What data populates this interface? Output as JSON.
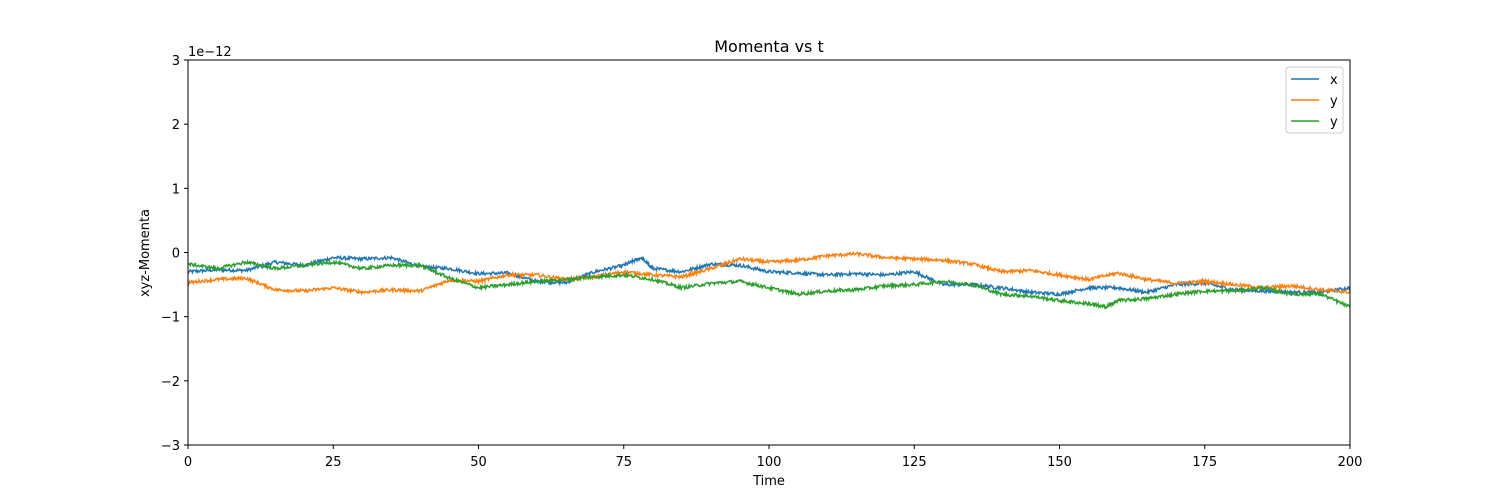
{
  "chart_data": {
    "type": "line",
    "title": "Momenta vs t",
    "xlabel": "Time",
    "ylabel": "xyz-Momenta",
    "y_offset_text": "1e−12",
    "xlim": [
      0,
      200
    ],
    "ylim": [
      -3,
      3
    ],
    "xticks": [
      0,
      25,
      50,
      75,
      100,
      125,
      150,
      175,
      200
    ],
    "yticks": [
      -3,
      -2,
      -1,
      0,
      1,
      2,
      3
    ],
    "ytick_labels": [
      "−3",
      "−2",
      "−1",
      "0",
      "1",
      "2",
      "3"
    ],
    "grid": false,
    "legend_position": "top-right",
    "series": [
      {
        "name": "x",
        "color": "#1f77b4",
        "x": [
          0,
          5,
          10,
          15,
          20,
          25,
          30,
          35,
          40,
          45,
          50,
          55,
          60,
          65,
          70,
          75,
          78,
          80,
          85,
          90,
          95,
          100,
          105,
          110,
          115,
          120,
          125,
          130,
          135,
          140,
          145,
          150,
          155,
          160,
          165,
          170,
          175,
          180,
          185,
          190,
          195,
          200
        ],
        "values": [
          -0.3,
          -0.27,
          -0.28,
          -0.15,
          -0.2,
          -0.08,
          -0.1,
          -0.08,
          -0.22,
          -0.25,
          -0.33,
          -0.32,
          -0.45,
          -0.47,
          -0.3,
          -0.2,
          -0.08,
          -0.25,
          -0.3,
          -0.18,
          -0.2,
          -0.3,
          -0.32,
          -0.35,
          -0.33,
          -0.35,
          -0.3,
          -0.5,
          -0.5,
          -0.55,
          -0.62,
          -0.65,
          -0.55,
          -0.55,
          -0.62,
          -0.5,
          -0.48,
          -0.58,
          -0.6,
          -0.62,
          -0.62,
          -0.55
        ]
      },
      {
        "name": "y",
        "color": "#ff7f0e",
        "x": [
          0,
          5,
          10,
          15,
          20,
          25,
          30,
          35,
          40,
          45,
          50,
          55,
          60,
          65,
          70,
          75,
          80,
          85,
          90,
          95,
          100,
          105,
          110,
          115,
          120,
          125,
          130,
          135,
          140,
          145,
          150,
          155,
          160,
          165,
          170,
          175,
          180,
          185,
          190,
          195,
          200
        ],
        "values": [
          -0.47,
          -0.42,
          -0.4,
          -0.58,
          -0.6,
          -0.55,
          -0.62,
          -0.58,
          -0.6,
          -0.43,
          -0.45,
          -0.35,
          -0.35,
          -0.42,
          -0.38,
          -0.3,
          -0.35,
          -0.38,
          -0.25,
          -0.1,
          -0.15,
          -0.12,
          -0.05,
          -0.02,
          -0.08,
          -0.1,
          -0.12,
          -0.18,
          -0.3,
          -0.28,
          -0.35,
          -0.42,
          -0.32,
          -0.42,
          -0.48,
          -0.45,
          -0.5,
          -0.55,
          -0.52,
          -0.58,
          -0.62
        ]
      },
      {
        "name": "y",
        "color": "#2ca02c",
        "x": [
          0,
          5,
          10,
          15,
          20,
          25,
          30,
          35,
          40,
          45,
          50,
          55,
          60,
          65,
          70,
          75,
          80,
          85,
          90,
          95,
          100,
          105,
          110,
          115,
          120,
          125,
          130,
          135,
          140,
          145,
          150,
          155,
          158,
          160,
          165,
          170,
          175,
          180,
          185,
          190,
          195,
          200
        ],
        "values": [
          -0.18,
          -0.25,
          -0.15,
          -0.25,
          -0.2,
          -0.15,
          -0.25,
          -0.2,
          -0.2,
          -0.4,
          -0.55,
          -0.5,
          -0.45,
          -0.42,
          -0.38,
          -0.35,
          -0.42,
          -0.55,
          -0.48,
          -0.45,
          -0.55,
          -0.65,
          -0.6,
          -0.58,
          -0.52,
          -0.5,
          -0.45,
          -0.5,
          -0.65,
          -0.68,
          -0.75,
          -0.8,
          -0.85,
          -0.75,
          -0.72,
          -0.65,
          -0.6,
          -0.6,
          -0.55,
          -0.65,
          -0.65,
          -0.85
        ]
      }
    ]
  }
}
